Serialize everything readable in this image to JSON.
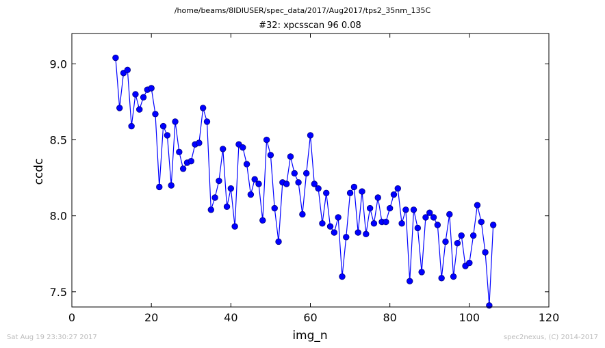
{
  "header": {
    "path": "/home/beams/8IDIUSER/spec_data/2017/Aug2017/tps2_35nm_135C",
    "title": "#32: xpcsscan 96 0.08"
  },
  "footer": {
    "timestamp": "Sat Aug 19 23:30:27 2017",
    "credit": "spec2nexus, (C) 2014-2017"
  },
  "colors": {
    "line": "#0000ff",
    "marker_fill": "#0000ff",
    "marker_edge": "#000080",
    "footer_text": "#bbbbbb"
  },
  "chart_data": {
    "type": "line",
    "title": "#32: xpcsscan 96 0.08",
    "xlabel": "img_n",
    "ylabel": "ccdc",
    "xlim": [
      0,
      120
    ],
    "ylim": [
      7.4,
      9.2
    ],
    "xticks": [
      0,
      20,
      40,
      60,
      80,
      100,
      120
    ],
    "yticks": [
      7.5,
      8.0,
      8.5,
      9.0
    ],
    "ytick_labels": [
      "7.5",
      "8.0",
      "8.5",
      "9.0"
    ],
    "grid": false,
    "legend": "none",
    "series": [
      {
        "x": [
          11,
          12,
          13,
          14,
          15,
          16,
          17,
          18,
          19,
          20,
          21,
          22,
          23,
          24,
          25,
          26,
          27,
          28,
          29,
          30,
          31,
          32,
          33,
          34,
          35,
          36,
          37,
          38,
          39,
          40,
          41,
          42,
          43,
          44,
          45,
          46,
          47,
          48,
          49,
          50,
          51,
          52,
          53,
          54,
          55,
          56,
          57,
          58,
          59,
          60,
          61,
          62,
          63,
          64,
          65,
          66,
          67,
          68,
          69,
          70,
          71,
          72,
          73,
          74,
          75,
          76,
          77,
          78,
          79,
          80,
          81,
          82,
          83,
          84,
          85,
          86,
          87,
          88,
          89,
          90,
          91,
          92,
          93,
          94,
          95,
          96,
          97,
          98,
          99,
          100,
          101,
          102,
          103,
          104,
          105,
          106
        ],
        "values": [
          9.04,
          8.71,
          8.94,
          8.96,
          8.59,
          8.8,
          8.7,
          8.78,
          8.83,
          8.84,
          8.67,
          8.19,
          8.59,
          8.53,
          8.2,
          8.62,
          8.42,
          8.31,
          8.35,
          8.36,
          8.47,
          8.48,
          8.71,
          8.62,
          8.04,
          8.12,
          8.23,
          8.44,
          8.06,
          8.18,
          7.93,
          8.47,
          8.45,
          8.34,
          8.14,
          8.24,
          8.21,
          7.97,
          8.5,
          8.4,
          8.05,
          7.83,
          8.22,
          8.21,
          8.39,
          8.28,
          8.22,
          8.01,
          8.28,
          8.53,
          8.21,
          8.18,
          7.95,
          8.15,
          7.93,
          7.89,
          7.99,
          7.6,
          7.86,
          8.15,
          8.19,
          7.89,
          8.16,
          7.88,
          8.05,
          7.95,
          8.12,
          7.96,
          7.96,
          8.05,
          8.14,
          8.18,
          7.95,
          8.04,
          7.57,
          8.04,
          7.92,
          7.63,
          7.99,
          8.02,
          7.99,
          7.94,
          7.59,
          7.83,
          8.01,
          7.6,
          7.82,
          7.87,
          7.67,
          7.69,
          7.87,
          8.07,
          7.96,
          7.76,
          7.41,
          7.94
        ]
      }
    ]
  }
}
